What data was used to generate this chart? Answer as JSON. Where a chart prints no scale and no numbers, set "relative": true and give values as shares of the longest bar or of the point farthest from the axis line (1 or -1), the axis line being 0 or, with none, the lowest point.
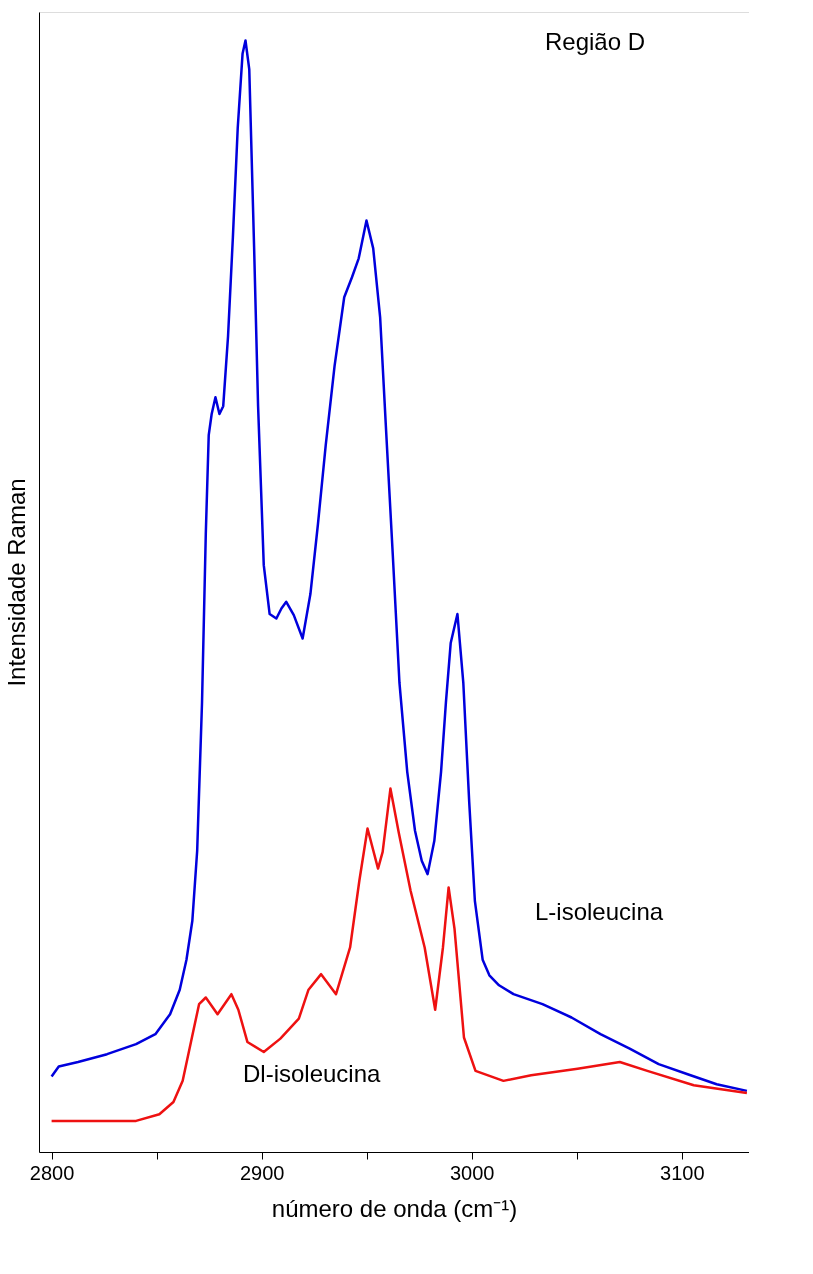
{
  "chart_data": {
    "type": "line",
    "relative": true,
    "xlabel": "número de onda (cm⁻¹)",
    "ylabel": "Intensidade Raman",
    "annotations": [
      "Região D"
    ],
    "xlim": [
      2794,
      3132
    ],
    "xticks": [
      2800,
      {
        "value": 2850,
        "label": null
      },
      2900,
      {
        "value": 2950,
        "label": null
      },
      3000,
      {
        "value": 3050,
        "label": null
      },
      3100
    ],
    "grid": false,
    "legend": false,
    "marker": "none",
    "line_style": "solid",
    "series": [
      {
        "name": "L-isoleucina",
        "color": "#0000dd",
        "x": [
          2800,
          2803.4,
          2812.6,
          2826.4,
          2840.2,
          2849.4,
          2856.4,
          2861,
          2864.2,
          2867,
          2869.3,
          2871.6,
          2873.4,
          2874.8,
          2876.2,
          2878,
          2879.9,
          2881.7,
          2884,
          2886.3,
          2888.6,
          2890.9,
          2892.3,
          2894.1,
          2896.4,
          2898.3,
          2901,
          2903.8,
          2907,
          2909.4,
          2911.7,
          2915.3,
          2919.5,
          2923.2,
          2926.8,
          2930.5,
          2934.7,
          2939.3,
          2943,
          2946.2,
          2949.9,
          2953.1,
          2956.4,
          2959.1,
          2962.4,
          2965.6,
          2969.3,
          2973,
          2976.2,
          2979,
          2982.2,
          2985.4,
          2987.7,
          2990,
          2993.2,
          2996,
          2998.8,
          3001.5,
          3005.2,
          3008.4,
          3013,
          3019.9,
          3033.7,
          3047.5,
          3061.3,
          3075.2,
          3089,
          3102.8,
          3116.6,
          3131
        ],
        "values": [
          0.068,
          0.077,
          0.081,
          0.088,
          0.097,
          0.106,
          0.124,
          0.146,
          0.173,
          0.208,
          0.271,
          0.404,
          0.556,
          0.645,
          0.664,
          0.679,
          0.664,
          0.671,
          0.734,
          0.823,
          0.921,
          0.988,
          1.0,
          0.974,
          0.814,
          0.671,
          0.528,
          0.484,
          0.48,
          0.489,
          0.495,
          0.483,
          0.462,
          0.502,
          0.565,
          0.636,
          0.707,
          0.769,
          0.787,
          0.804,
          0.838,
          0.813,
          0.751,
          0.654,
          0.538,
          0.422,
          0.342,
          0.289,
          0.262,
          0.25,
          0.28,
          0.342,
          0.404,
          0.458,
          0.484,
          0.422,
          0.315,
          0.226,
          0.173,
          0.159,
          0.15,
          0.142,
          0.133,
          0.121,
          0.106,
          0.093,
          0.079,
          0.07,
          0.061,
          0.055
        ]
      },
      {
        "name": "Dl-isoleucina",
        "color": "#ee1111",
        "x": [
          2800,
          2818.1,
          2840.2,
          2851.3,
          2858,
          2862.4,
          2866.8,
          2870.2,
          2873.4,
          2879,
          2885.6,
          2888.9,
          2893.2,
          2901,
          2908.9,
          2917.7,
          2922.3,
          2928.3,
          2935.4,
          2942.1,
          2946.5,
          2950.4,
          2955.4,
          2957.6,
          2961.3,
          2965.3,
          2970.9,
          2977.6,
          2982.6,
          2986.3,
          2989,
          2991.8,
          2996.3,
          3001.8,
          3015.1,
          3028.3,
          3050.4,
          3070.5,
          3083.6,
          3105.7,
          3131
        ],
        "values": [
          0.028,
          0.028,
          0.028,
          0.034,
          0.045,
          0.064,
          0.103,
          0.133,
          0.139,
          0.124,
          0.142,
          0.128,
          0.099,
          0.09,
          0.102,
          0.12,
          0.146,
          0.16,
          0.142,
          0.184,
          0.244,
          0.291,
          0.255,
          0.27,
          0.327,
          0.287,
          0.235,
          0.184,
          0.128,
          0.184,
          0.238,
          0.201,
          0.103,
          0.073,
          0.064,
          0.069,
          0.075,
          0.081,
          0.073,
          0.06,
          0.053
        ]
      }
    ]
  }
}
